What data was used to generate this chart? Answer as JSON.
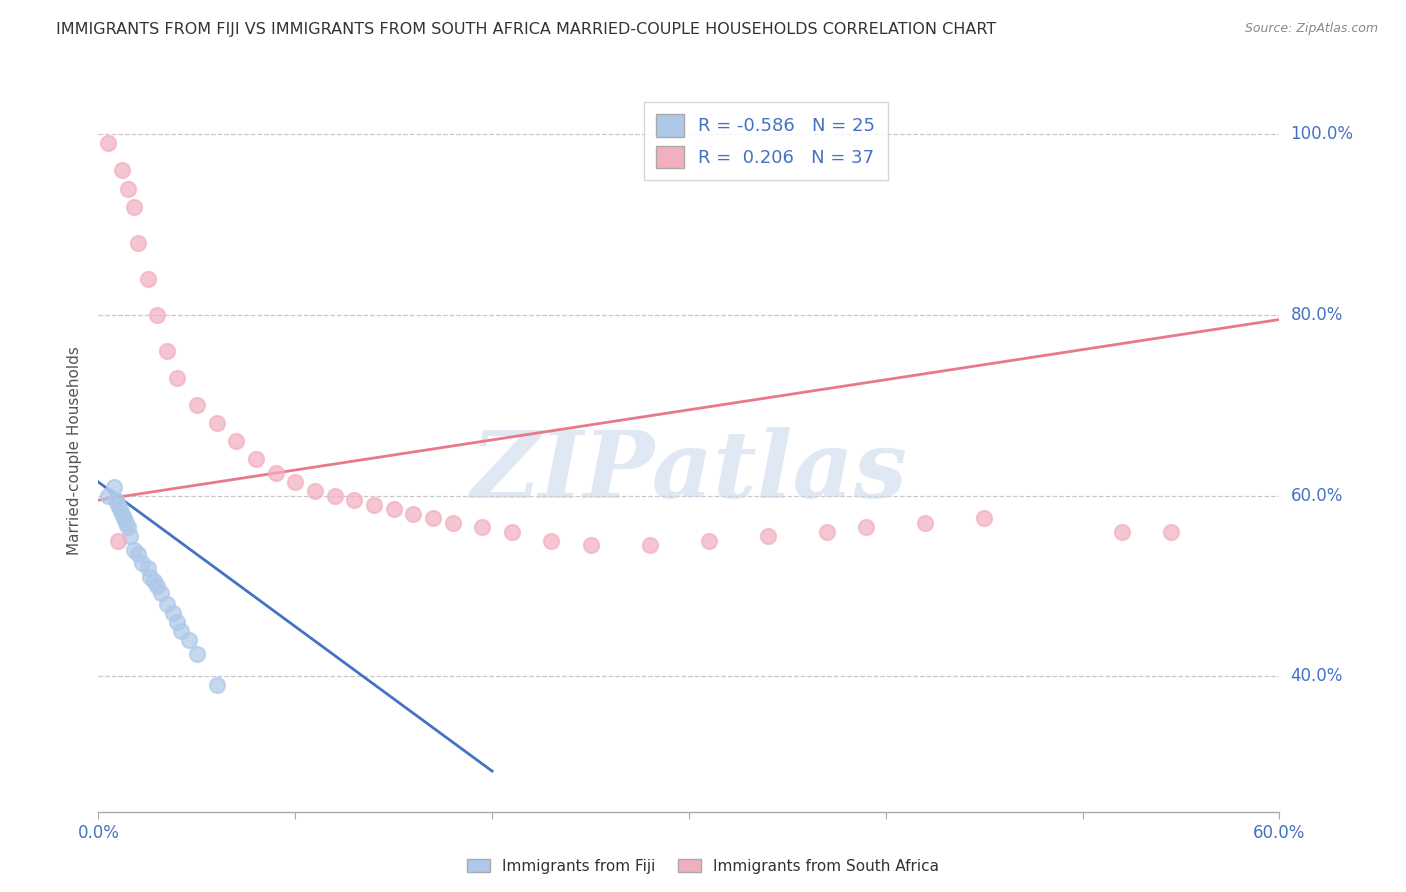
{
  "title": "IMMIGRANTS FROM FIJI VS IMMIGRANTS FROM SOUTH AFRICA MARRIED-COUPLE HOUSEHOLDS CORRELATION CHART",
  "source": "Source: ZipAtlas.com",
  "ylabel": "Married-couple Households",
  "legend_fiji": "Immigrants from Fiji",
  "legend_sa": "Immigrants from South Africa",
  "fiji_R": -0.586,
  "fiji_N": 25,
  "sa_R": 0.206,
  "sa_N": 37,
  "fiji_color": "#adc8e8",
  "sa_color": "#f2afc0",
  "fiji_line_color": "#4472c4",
  "sa_line_color": "#e8788a",
  "fiji_x": [
    0.005,
    0.008,
    0.009,
    0.01,
    0.011,
    0.012,
    0.013,
    0.014,
    0.015,
    0.016,
    0.018,
    0.02,
    0.022,
    0.025,
    0.026,
    0.028,
    0.03,
    0.032,
    0.035,
    0.038,
    0.04,
    0.042,
    0.046,
    0.05,
    0.06
  ],
  "fiji_y": [
    0.6,
    0.61,
    0.595,
    0.59,
    0.585,
    0.58,
    0.575,
    0.57,
    0.565,
    0.555,
    0.54,
    0.535,
    0.525,
    0.52,
    0.51,
    0.505,
    0.5,
    0.492,
    0.48,
    0.47,
    0.46,
    0.45,
    0.44,
    0.425,
    0.39
  ],
  "sa_x": [
    0.005,
    0.012,
    0.015,
    0.018,
    0.02,
    0.025,
    0.03,
    0.035,
    0.04,
    0.05,
    0.06,
    0.07,
    0.08,
    0.09,
    0.1,
    0.11,
    0.12,
    0.13,
    0.14,
    0.15,
    0.16,
    0.17,
    0.18,
    0.195,
    0.21,
    0.23,
    0.25,
    0.28,
    0.31,
    0.34,
    0.37,
    0.39,
    0.42,
    0.45,
    0.52,
    0.545,
    0.01
  ],
  "sa_y": [
    0.99,
    0.96,
    0.94,
    0.92,
    0.88,
    0.84,
    0.8,
    0.76,
    0.73,
    0.7,
    0.68,
    0.66,
    0.64,
    0.625,
    0.615,
    0.605,
    0.6,
    0.595,
    0.59,
    0.585,
    0.58,
    0.575,
    0.57,
    0.565,
    0.56,
    0.55,
    0.545,
    0.545,
    0.55,
    0.555,
    0.56,
    0.565,
    0.57,
    0.575,
    0.56,
    0.56,
    0.55
  ],
  "fiji_line_x0": 0.0,
  "fiji_line_x1": 0.2,
  "fiji_line_y0": 0.615,
  "fiji_line_y1": 0.295,
  "sa_line_x0": 0.0,
  "sa_line_x1": 0.6,
  "sa_line_y0": 0.595,
  "sa_line_y1": 0.795,
  "xmin": 0.0,
  "xmax": 0.6,
  "ymin": 0.25,
  "ymax": 1.05,
  "right_y_labels": [
    [
      1.0,
      "100.0%"
    ],
    [
      0.8,
      "80.0%"
    ],
    [
      0.6,
      "60.0%"
    ],
    [
      0.4,
      "40.0%"
    ]
  ],
  "watermark_text": "ZIPatlas",
  "background_color": "#ffffff",
  "grid_color": "#c8c8c8"
}
